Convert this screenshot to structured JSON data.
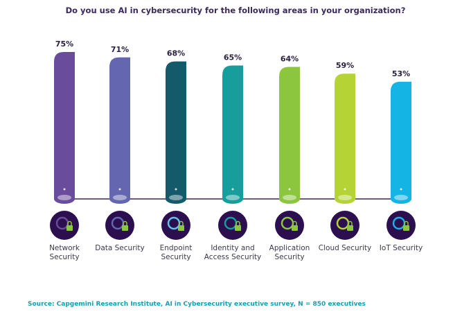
{
  "chart_data": {
    "type": "bar",
    "title": "Do you use AI in cybersecurity for the following areas in your organization?",
    "categories": [
      "Network Security",
      "Data Security",
      "Endpoint Security",
      "Identity and Access Security",
      "Application Security",
      "Cloud Security",
      "IoT Security"
    ],
    "values": [
      75,
      71,
      68,
      65,
      64,
      59,
      53
    ],
    "value_labels": [
      "75%",
      "71%",
      "68%",
      "65%",
      "64%",
      "59%",
      "53%"
    ],
    "colors": [
      "#6a4c9c",
      "#6467b0",
      "#155a6a",
      "#179e9c",
      "#8cc63f",
      "#b5d334",
      "#14b4e4"
    ],
    "icons": [
      "network-lock-icon",
      "database-lock-icon",
      "endpoint-lock-icon",
      "identity-lock-icon",
      "application-lock-icon",
      "cloud-lock-icon",
      "iot-lock-icon"
    ],
    "xlabel": "",
    "ylabel": ""
  },
  "source": "Source: Capgemini Research Institute, AI in Cybersecurity executive survey, N = 850 executives"
}
